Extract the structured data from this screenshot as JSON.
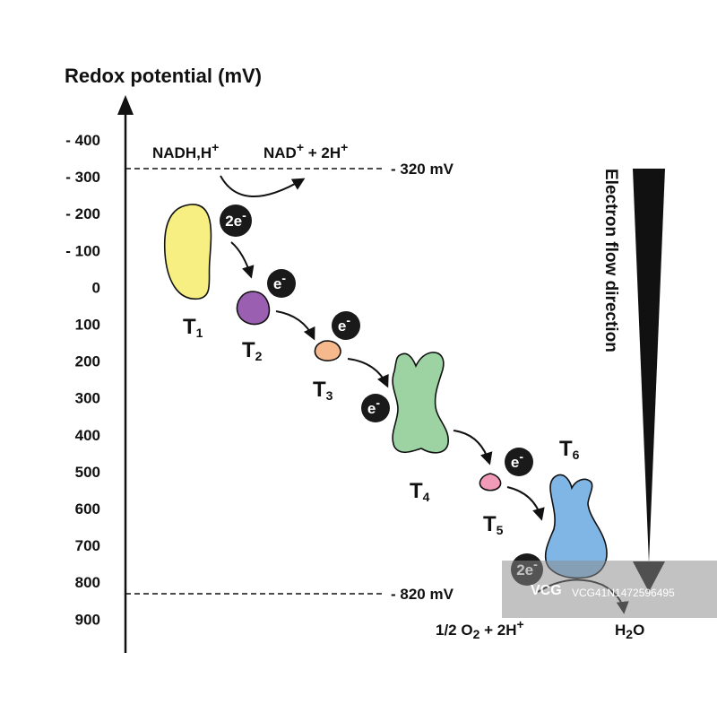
{
  "axis": {
    "title": "Redox potential (mV)",
    "ticks": [
      "- 400",
      "- 300",
      "- 200",
      "- 100",
      "0",
      "100",
      "200",
      "300",
      "400",
      "500",
      "600",
      "700",
      "800",
      "900"
    ]
  },
  "levels": {
    "top": "- 320 mV",
    "bottom": "- 820 mV"
  },
  "reactions": {
    "nadh": "NADH,H",
    "nadh_sup": "+",
    "nad": "NAD",
    "nad_sup": "+",
    "nad_rest": " + 2H",
    "nad_rest_sup": "+",
    "oxygen_pre": "1/2 O",
    "oxygen_sub": "2",
    "oxygen_post": " + 2H",
    "oxygen_sup": "+",
    "water_pre": "H",
    "water_sub": "2",
    "water_post": "O"
  },
  "complexes": [
    {
      "letter": "T",
      "index": "1",
      "color": "#f8ef82"
    },
    {
      "letter": "T",
      "index": "2",
      "color": "#9a5fb0"
    },
    {
      "letter": "T",
      "index": "3",
      "color": "#f6b98e"
    },
    {
      "letter": "T",
      "index": "4",
      "color": "#9dd3a3"
    },
    {
      "letter": "T",
      "index": "5",
      "color": "#f29bb8"
    },
    {
      "letter": "T",
      "index": "6",
      "color": "#7fb6e6"
    }
  ],
  "electrons": [
    {
      "base": "2e",
      "sup": "-"
    },
    {
      "base": "e",
      "sup": "-"
    },
    {
      "base": "e",
      "sup": "-"
    },
    {
      "base": "e",
      "sup": "-"
    },
    {
      "base": "e",
      "sup": "-"
    },
    {
      "base": "2e",
      "sup": "-"
    }
  ],
  "flow": {
    "label": "Electron flow direction",
    "color": "#111111"
  },
  "watermark": {
    "brand": "VCG",
    "id": "VCG41N1472596495"
  }
}
